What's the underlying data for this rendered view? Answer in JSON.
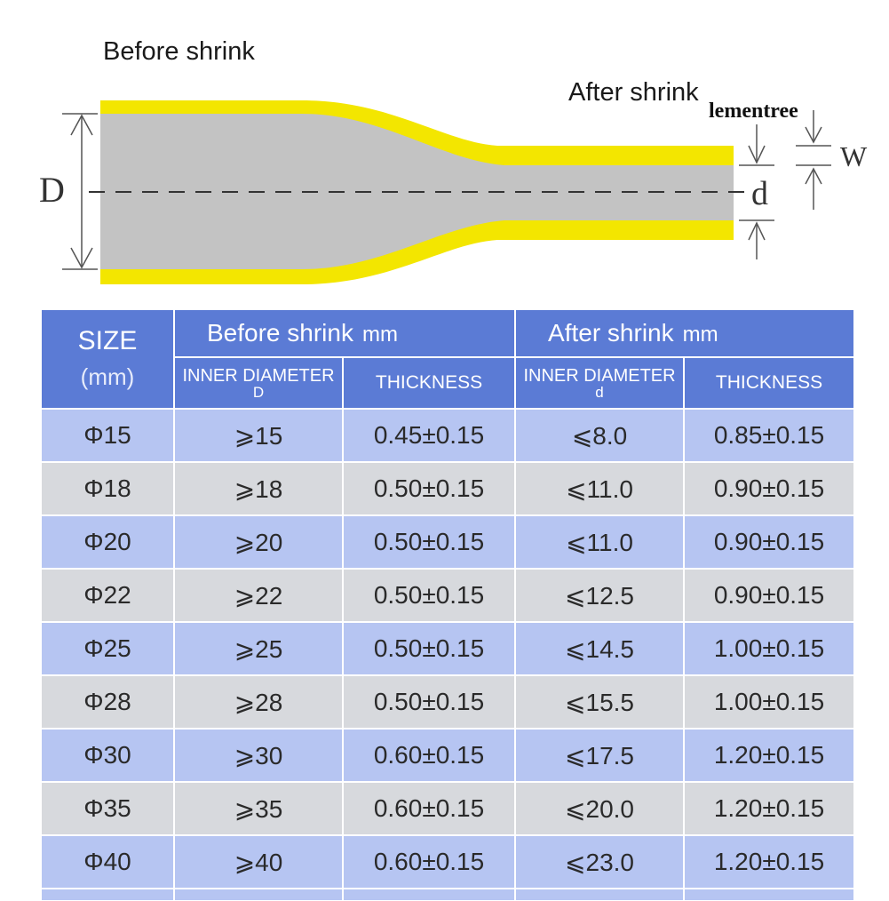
{
  "diagram": {
    "before_label": "Before  shrink",
    "after_label": "After shrink",
    "watermark": "lementree",
    "dim_outer": "D",
    "dim_inner": "d",
    "dim_wall": "W",
    "colors": {
      "sleeve": "#f3e600",
      "core": "#c3c3c3",
      "dim_line": "#555555"
    }
  },
  "table": {
    "size_header": "SIZE",
    "size_unit": "(mm)",
    "before_header": "Before  shrink",
    "after_header": "After shrink",
    "group_unit": "mm",
    "inner_diameter_label": "INNER DIAMETER",
    "before_inner_symbol": "D",
    "after_inner_symbol": "d",
    "thickness_label": "THICKNESS",
    "rows": [
      {
        "size": "Φ15",
        "before_d": "⩾15",
        "before_t": "0.45±0.15",
        "after_d": "⩽8.0",
        "after_t": "0.85±0.15"
      },
      {
        "size": "Φ18",
        "before_d": "⩾18",
        "before_t": "0.50±0.15",
        "after_d": "⩽11.0",
        "after_t": "0.90±0.15"
      },
      {
        "size": "Φ20",
        "before_d": "⩾20",
        "before_t": "0.50±0.15",
        "after_d": "⩽11.0",
        "after_t": "0.90±0.15"
      },
      {
        "size": "Φ22",
        "before_d": "⩾22",
        "before_t": "0.50±0.15",
        "after_d": "⩽12.5",
        "after_t": "0.90±0.15"
      },
      {
        "size": "Φ25",
        "before_d": "⩾25",
        "before_t": "0.50±0.15",
        "after_d": "⩽14.5",
        "after_t": "1.00±0.15"
      },
      {
        "size": "Φ28",
        "before_d": "⩾28",
        "before_t": "0.50±0.15",
        "after_d": "⩽15.5",
        "after_t": "1.00±0.15"
      },
      {
        "size": "Φ30",
        "before_d": "⩾30",
        "before_t": "0.60±0.15",
        "after_d": "⩽17.5",
        "after_t": "1.20±0.15"
      },
      {
        "size": "Φ35",
        "before_d": "⩾35",
        "before_t": "0.60±0.15",
        "after_d": "⩽20.0",
        "after_t": "1.20±0.15"
      },
      {
        "size": "Φ40",
        "before_d": "⩾40",
        "before_t": "0.60±0.15",
        "after_d": "⩽23.0",
        "after_t": "1.20±0.15"
      }
    ],
    "colors": {
      "header": "#5b7bd5",
      "row_blue": "#b6c5f2",
      "row_gray": "#d7d9dd"
    }
  }
}
